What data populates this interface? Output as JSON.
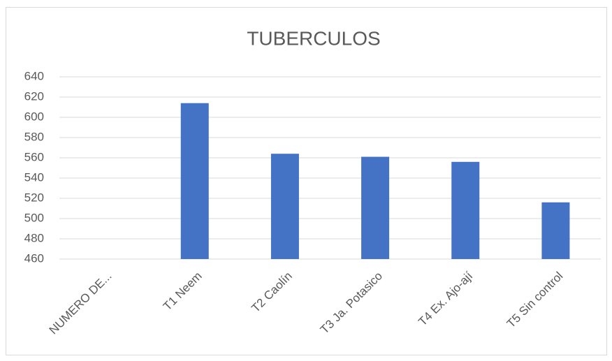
{
  "chart_data": {
    "type": "bar",
    "title": "TUBERCULOS",
    "categories": [
      "NUMERO DE...",
      "T1 Neem",
      "T2 Caolín",
      "T3 Ja. Potasico",
      "T4 Ex. Ajo-ají",
      "T5 Sin control"
    ],
    "values": [
      null,
      614,
      564,
      561,
      556,
      516
    ],
    "color": "#4472c4",
    "ylim": [
      460,
      640
    ],
    "yticks": [
      460,
      480,
      500,
      520,
      540,
      560,
      580,
      600,
      620,
      640
    ],
    "grid": true
  }
}
